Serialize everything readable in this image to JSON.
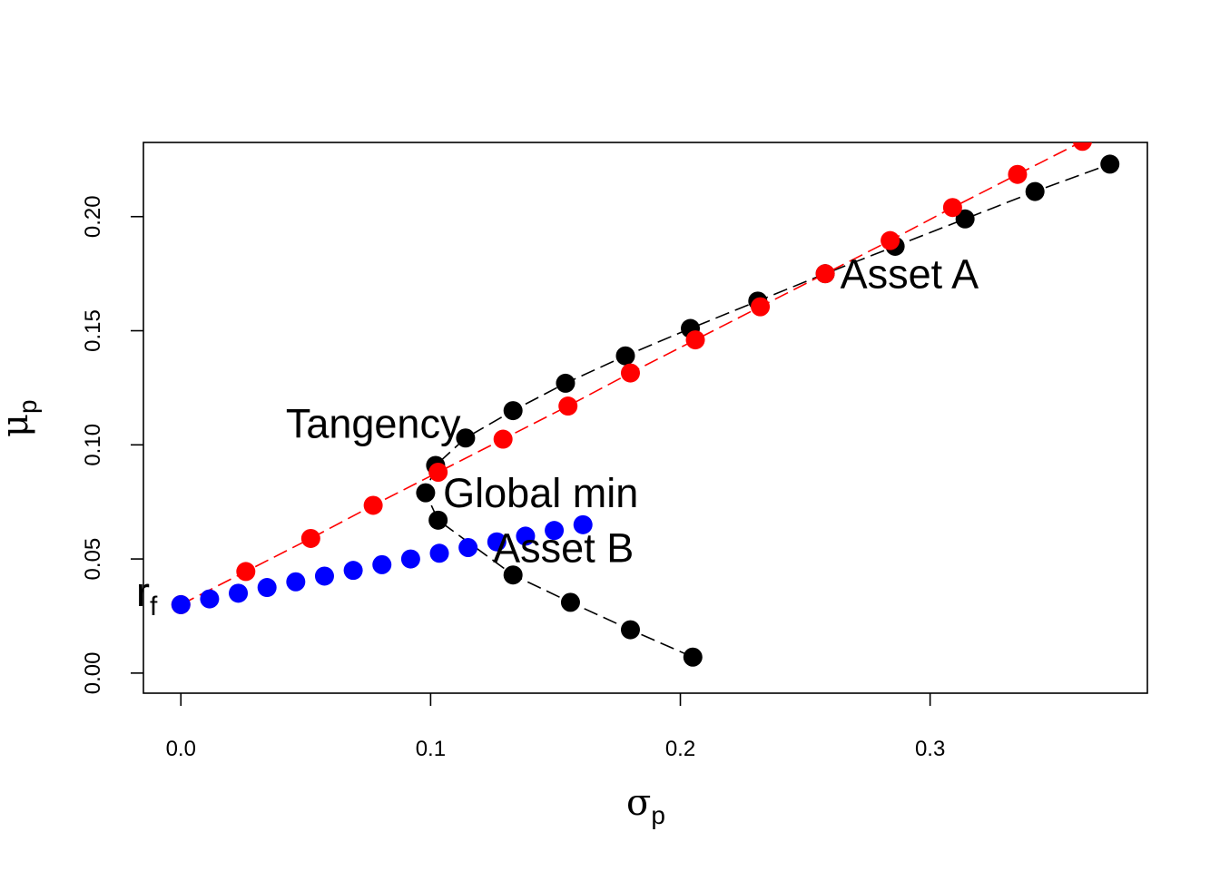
{
  "chart_data": {
    "type": "scatter",
    "xlabel": {
      "symbol": "σ",
      "subscript": "p"
    },
    "ylabel": {
      "symbol": "μ",
      "subscript": "p"
    },
    "xlim": [
      -0.015,
      0.387
    ],
    "ylim": [
      -0.0088,
      0.2325
    ],
    "xticks": [
      "0.0",
      "0.1",
      "0.2",
      "0.3"
    ],
    "yticks": [
      "0.00",
      "0.05",
      "0.10",
      "0.15",
      "0.20"
    ],
    "grid": false,
    "series": [
      {
        "color": "#000000",
        "style": "dashed-line-with-points",
        "x": [
          0.205,
          0.18,
          0.156,
          0.133,
          0.103,
          0.098,
          0.102,
          0.114,
          0.133,
          0.154,
          0.178,
          0.204,
          0.231,
          0.258,
          0.286,
          0.314,
          0.342,
          0.372
        ],
        "y": [
          0.007,
          0.019,
          0.031,
          0.043,
          0.067,
          0.079,
          0.091,
          0.103,
          0.115,
          0.127,
          0.139,
          0.151,
          0.163,
          0.175,
          0.187,
          0.199,
          0.211,
          0.223
        ]
      },
      {
        "color": "#ff0000",
        "style": "dashed-line-with-points",
        "x": [
          0.0,
          0.026,
          0.052,
          0.077,
          0.103,
          0.129,
          0.155,
          0.18,
          0.206,
          0.232,
          0.258,
          0.284,
          0.309,
          0.335,
          0.361
        ],
        "y": [
          0.03,
          0.0445,
          0.059,
          0.0735,
          0.088,
          0.1025,
          0.117,
          0.1315,
          0.146,
          0.1605,
          0.175,
          0.1895,
          0.204,
          0.2185,
          0.233
        ]
      },
      {
        "color": "#0000ff",
        "style": "points",
        "x": [
          0.0,
          0.0115,
          0.023,
          0.0345,
          0.046,
          0.0575,
          0.069,
          0.0805,
          0.092,
          0.1035,
          0.115,
          0.1265,
          0.138,
          0.1495,
          0.161
        ],
        "y": [
          0.03,
          0.0325,
          0.035,
          0.0375,
          0.04,
          0.0425,
          0.045,
          0.0475,
          0.05,
          0.0525,
          0.055,
          0.0575,
          0.06,
          0.0625,
          0.065
        ]
      }
    ],
    "annotations": [
      {
        "text": "Asset A",
        "x": 0.264,
        "y": 0.175
      },
      {
        "text": "Asset B",
        "x": 0.125,
        "y": 0.055
      },
      {
        "text": "Global min",
        "x": 0.105,
        "y": 0.079
      },
      {
        "text": "Tangency",
        "x": 0.042,
        "y": 0.1095
      }
    ],
    "rf_label": {
      "symbol": "r",
      "subscript": "f"
    }
  }
}
